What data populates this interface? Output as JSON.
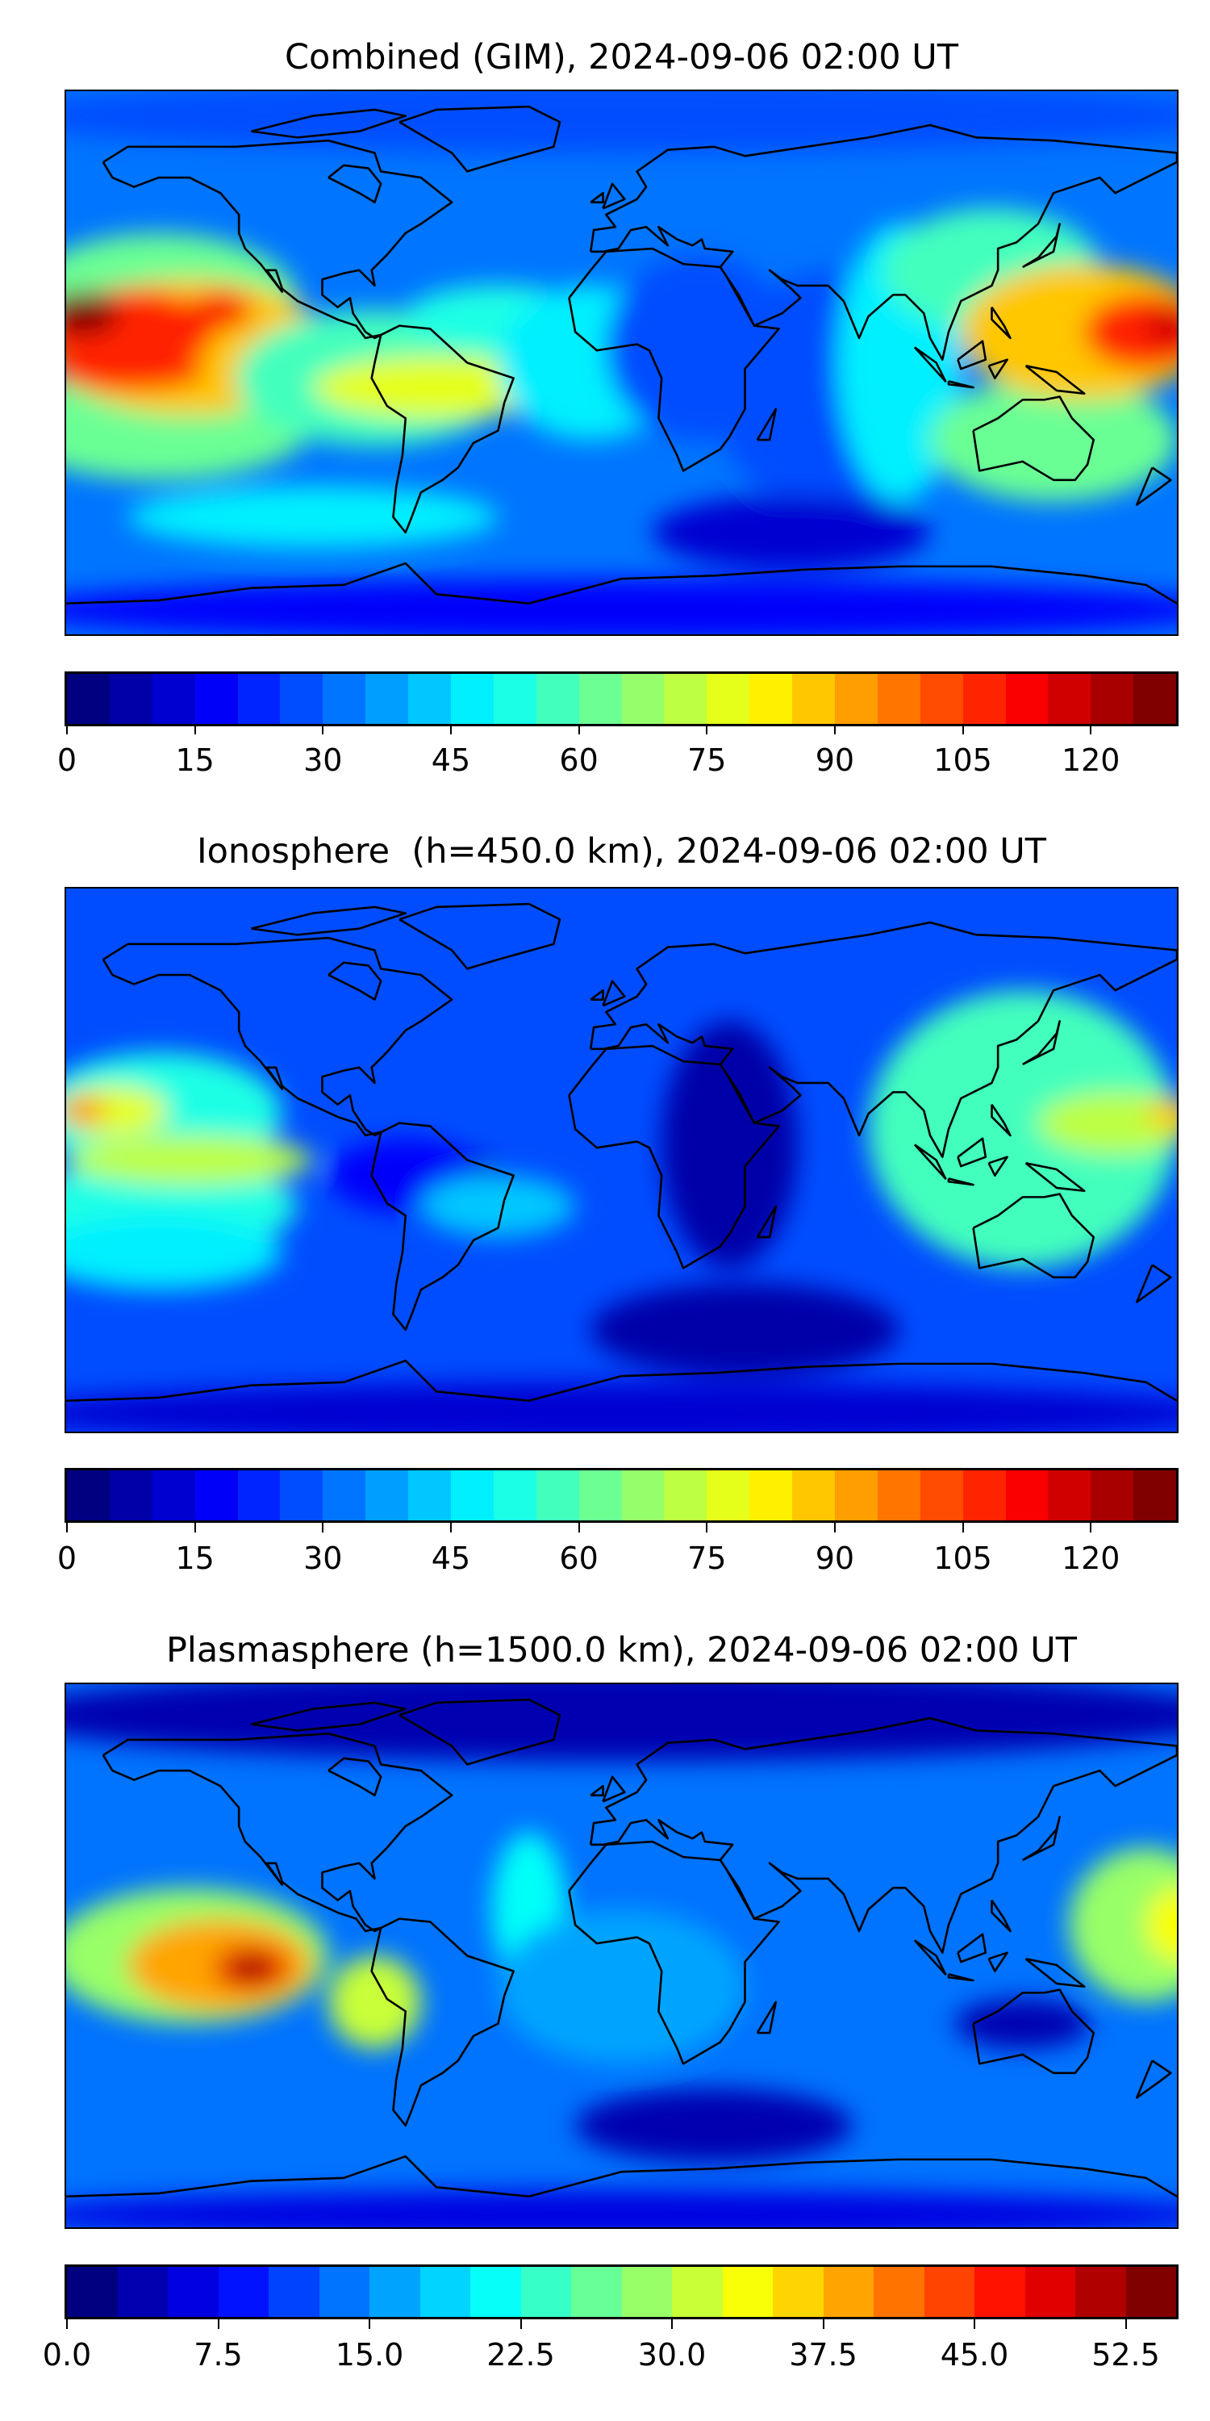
{
  "chart_data": [
    {
      "type": "heatmap",
      "title": "Combined (GIM), 2024-09-06 02:00 UT",
      "projection": "equirectangular",
      "lon_range": [
        -180,
        180
      ],
      "lat_range": [
        -88,
        88
      ],
      "colormap": "jet",
      "colorbar": {
        "min": 0,
        "max": 130,
        "step": 5,
        "ticks": [
          0,
          15,
          30,
          45,
          60,
          75,
          90,
          105,
          120
        ],
        "tick_labels": [
          "0",
          "15",
          "30",
          "45",
          "60",
          "75",
          "90",
          "105",
          "120"
        ]
      },
      "background_value": 30,
      "features": [
        {
          "lon": 0,
          "lat": 80,
          "rx": 200,
          "ry": 12,
          "value": 28
        },
        {
          "lon": -150,
          "lat": 20,
          "rx": 45,
          "ry": 22,
          "value": 60
        },
        {
          "lon": -150,
          "lat": -20,
          "rx": 50,
          "ry": 18,
          "value": 62
        },
        {
          "lon": -140,
          "lat": 5,
          "rx": 45,
          "ry": 22,
          "value": 85
        },
        {
          "lon": -160,
          "lat": 10,
          "rx": 28,
          "ry": 14,
          "value": 105
        },
        {
          "lon": -160,
          "lat": -3,
          "rx": 25,
          "ry": 6,
          "value": 108
        },
        {
          "lon": -175,
          "lat": 16,
          "rx": 12,
          "ry": 7,
          "value": 125
        },
        {
          "lon": -130,
          "lat": 17,
          "rx": 10,
          "ry": 6,
          "value": 112
        },
        {
          "lon": -80,
          "lat": -5,
          "rx": 45,
          "ry": 22,
          "value": 55
        },
        {
          "lon": -60,
          "lat": -8,
          "rx": 40,
          "ry": 10,
          "value": 78
        },
        {
          "lon": -40,
          "lat": 15,
          "rx": 30,
          "ry": 10,
          "value": 50
        },
        {
          "lon": -10,
          "lat": 0,
          "rx": 30,
          "ry": 25,
          "value": 45
        },
        {
          "lon": 25,
          "lat": 5,
          "rx": 30,
          "ry": 30,
          "value": 28
        },
        {
          "lon": 70,
          "lat": -10,
          "rx": 40,
          "ry": 40,
          "value": 28
        },
        {
          "lon": 55,
          "lat": -55,
          "rx": 45,
          "ry": 12,
          "value": 10
        },
        {
          "lon": 90,
          "lat": 0,
          "rx": 20,
          "ry": 45,
          "value": 45
        },
        {
          "lon": 120,
          "lat": 30,
          "rx": 35,
          "ry": 20,
          "value": 55
        },
        {
          "lon": 140,
          "lat": -25,
          "rx": 40,
          "ry": 20,
          "value": 60
        },
        {
          "lon": 150,
          "lat": 10,
          "rx": 40,
          "ry": 22,
          "value": 85
        },
        {
          "lon": 170,
          "lat": 10,
          "rx": 20,
          "ry": 12,
          "value": 105
        },
        {
          "lon": 178,
          "lat": 12,
          "rx": 8,
          "ry": 6,
          "value": 118
        },
        {
          "lon": 0,
          "lat": -80,
          "rx": 200,
          "ry": 10,
          "value": 15
        },
        {
          "lon": -100,
          "lat": -50,
          "rx": 60,
          "ry": 10,
          "value": 45
        }
      ]
    },
    {
      "type": "heatmap",
      "title": "Ionosphere  (h=450.0 km), 2024-09-06 02:00 UT",
      "projection": "equirectangular",
      "lon_range": [
        -180,
        180
      ],
      "lat_range": [
        -88,
        88
      ],
      "colormap": "jet",
      "colorbar": {
        "min": 0,
        "max": 130,
        "step": 5,
        "ticks": [
          0,
          15,
          30,
          45,
          60,
          75,
          90,
          105,
          120
        ],
        "tick_labels": [
          "0",
          "15",
          "30",
          "45",
          "60",
          "75",
          "90",
          "105",
          "120"
        ]
      },
      "background_value": 25,
      "features": [
        {
          "lon": -150,
          "lat": 15,
          "rx": 40,
          "ry": 20,
          "value": 50
        },
        {
          "lon": -150,
          "lat": -15,
          "rx": 45,
          "ry": 15,
          "value": 50
        },
        {
          "lon": -165,
          "lat": 16,
          "rx": 18,
          "ry": 8,
          "value": 75
        },
        {
          "lon": -175,
          "lat": 16,
          "rx": 8,
          "ry": 5,
          "value": 92
        },
        {
          "lon": -140,
          "lat": 0,
          "rx": 40,
          "ry": 8,
          "value": 70
        },
        {
          "lon": -150,
          "lat": -30,
          "rx": 40,
          "ry": 12,
          "value": 45
        },
        {
          "lon": -55,
          "lat": -2,
          "rx": 14,
          "ry": 4,
          "value": 5
        },
        {
          "lon": -70,
          "lat": -5,
          "rx": 25,
          "ry": 12,
          "value": 15
        },
        {
          "lon": -40,
          "lat": -15,
          "rx": 25,
          "ry": 10,
          "value": 40
        },
        {
          "lon": 35,
          "lat": 5,
          "rx": 22,
          "ry": 40,
          "value": 8
        },
        {
          "lon": 40,
          "lat": -55,
          "rx": 50,
          "ry": 15,
          "value": 8
        },
        {
          "lon": 130,
          "lat": 10,
          "rx": 50,
          "ry": 45,
          "value": 55
        },
        {
          "lon": 160,
          "lat": 12,
          "rx": 25,
          "ry": 10,
          "value": 72
        },
        {
          "lon": 178,
          "lat": 15,
          "rx": 8,
          "ry": 5,
          "value": 88
        },
        {
          "lon": 0,
          "lat": -82,
          "rx": 200,
          "ry": 10,
          "value": 10
        }
      ]
    },
    {
      "type": "heatmap",
      "title": "Plasmasphere (h=1500.0 km), 2024-09-06 02:00 UT",
      "projection": "equirectangular",
      "lon_range": [
        -180,
        180
      ],
      "lat_range": [
        -88,
        88
      ],
      "colormap": "jet",
      "colorbar": {
        "min": 0,
        "max": 55,
        "step": 2.5,
        "ticks": [
          0,
          7.5,
          15,
          22.5,
          30,
          37.5,
          45,
          52.5
        ],
        "tick_labels": [
          "0.0",
          "7.5",
          "15.0",
          "22.5",
          "30.0",
          "37.5",
          "45.0",
          "52.5"
        ]
      },
      "background_value": 13,
      "features": [
        {
          "lon": 0,
          "lat": 78,
          "rx": 200,
          "ry": 15,
          "value": 4
        },
        {
          "lon": -140,
          "lat": 0,
          "rx": 45,
          "ry": 22,
          "value": 28
        },
        {
          "lon": -130,
          "lat": -3,
          "rx": 30,
          "ry": 15,
          "value": 38
        },
        {
          "lon": -120,
          "lat": -4,
          "rx": 12,
          "ry": 7,
          "value": 48
        },
        {
          "lon": -120,
          "lat": -4,
          "rx": 5,
          "ry": 3,
          "value": 54
        },
        {
          "lon": -80,
          "lat": -15,
          "rx": 15,
          "ry": 15,
          "value": 30
        },
        {
          "lon": -30,
          "lat": 15,
          "rx": 12,
          "ry": 25,
          "value": 22
        },
        {
          "lon": 0,
          "lat": -10,
          "rx": 40,
          "ry": 25,
          "value": 17
        },
        {
          "lon": 130,
          "lat": -22,
          "rx": 22,
          "ry": 8,
          "value": 3
        },
        {
          "lon": 30,
          "lat": -55,
          "rx": 45,
          "ry": 12,
          "value": 4
        },
        {
          "lon": 170,
          "lat": 10,
          "rx": 25,
          "ry": 25,
          "value": 28
        },
        {
          "lon": 180,
          "lat": 10,
          "rx": 10,
          "ry": 12,
          "value": 34
        },
        {
          "lon": 0,
          "lat": -84,
          "rx": 200,
          "ry": 8,
          "value": 5
        }
      ]
    }
  ]
}
